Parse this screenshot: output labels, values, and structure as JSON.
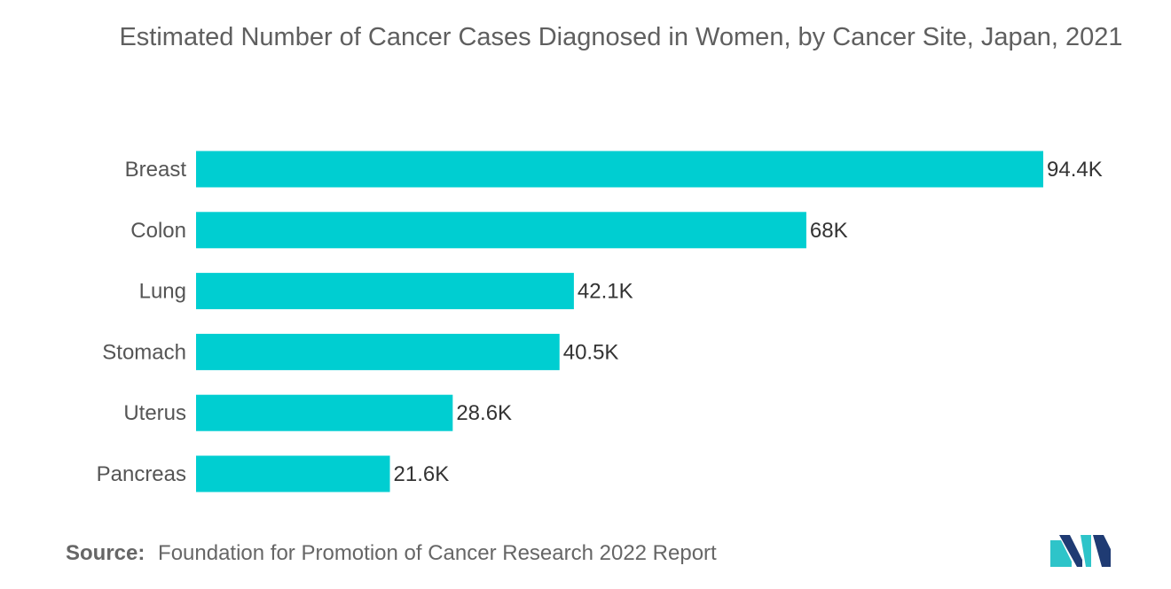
{
  "chart_data": {
    "type": "bar",
    "orientation": "horizontal",
    "title": "Estimated Number of Cancer Cases Diagnosed in Women, by Cancer Site, Japan, 2021",
    "categories": [
      "Breast",
      "Colon",
      "Lung",
      "Stomach",
      "Uterus",
      "Pancreas"
    ],
    "values": [
      94.4,
      68,
      42.1,
      40.5,
      28.6,
      21.6
    ],
    "value_labels": [
      "94.4K",
      "68K",
      "42.1K",
      "40.5K",
      "28.6K",
      "21.6K"
    ],
    "xlim": [
      0,
      94.4
    ],
    "grid": false,
    "bar_color": "#00CED1"
  },
  "source": {
    "label": "Source:",
    "text": "Foundation for Promotion of Cancer Research 2022 Report"
  },
  "logo": {
    "icon": "mordor-intelligence-logo",
    "colors": [
      "#1f3b73",
      "#2ec4c9"
    ]
  }
}
